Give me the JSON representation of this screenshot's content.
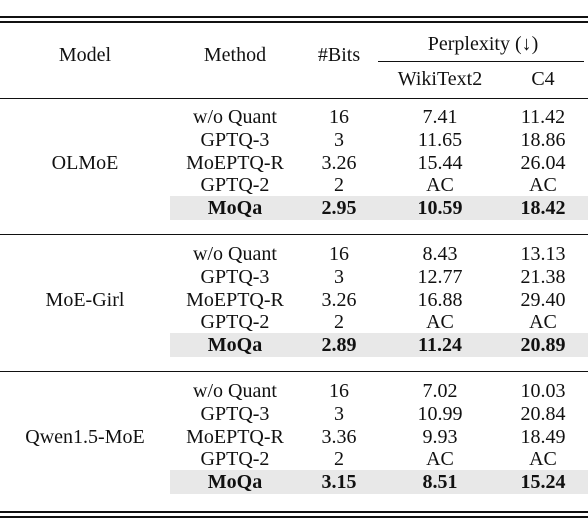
{
  "caption_tail": "…",
  "headers": {
    "model": "Model",
    "method": "Method",
    "bits": "#Bits",
    "perplexity": "Perplexity (↓)",
    "wikitext2": "WikiText2",
    "c4": "C4"
  },
  "groups": [
    {
      "model": "OLMoE",
      "rows": [
        {
          "method": "w/o Quant",
          "bits": "16",
          "wiki": "7.41",
          "c4": "11.42"
        },
        {
          "method": "GPTQ-3",
          "bits": "3",
          "wiki": "11.65",
          "c4": "18.86"
        },
        {
          "method": "MoEPTQ-R",
          "bits": "3.26",
          "wiki": "15.44",
          "c4": "26.04"
        },
        {
          "method": "GPTQ-2",
          "bits": "2",
          "wiki": "AC",
          "c4": "AC"
        },
        {
          "method": "MoQa",
          "bits": "2.95",
          "wiki": "10.59",
          "c4": "18.42",
          "highlight": true
        }
      ]
    },
    {
      "model": "MoE-Girl",
      "rows": [
        {
          "method": "w/o Quant",
          "bits": "16",
          "wiki": "8.43",
          "c4": "13.13"
        },
        {
          "method": "GPTQ-3",
          "bits": "3",
          "wiki": "12.77",
          "c4": "21.38"
        },
        {
          "method": "MoEPTQ-R",
          "bits": "3.26",
          "wiki": "16.88",
          "c4": "29.40"
        },
        {
          "method": "GPTQ-2",
          "bits": "2",
          "wiki": "AC",
          "c4": "AC"
        },
        {
          "method": "MoQa",
          "bits": "2.89",
          "wiki": "11.24",
          "c4": "20.89",
          "highlight": true
        }
      ]
    },
    {
      "model": "Qwen1.5-MoE",
      "rows": [
        {
          "method": "w/o Quant",
          "bits": "16",
          "wiki": "7.02",
          "c4": "10.03"
        },
        {
          "method": "GPTQ-3",
          "bits": "3",
          "wiki": "10.99",
          "c4": "20.84"
        },
        {
          "method": "MoEPTQ-R",
          "bits": "3.36",
          "wiki": "9.93",
          "c4": "18.49"
        },
        {
          "method": "GPTQ-2",
          "bits": "2",
          "wiki": "AC",
          "c4": "AC"
        },
        {
          "method": "MoQa",
          "bits": "3.15",
          "wiki": "8.51",
          "c4": "15.24",
          "highlight": true
        }
      ]
    }
  ]
}
